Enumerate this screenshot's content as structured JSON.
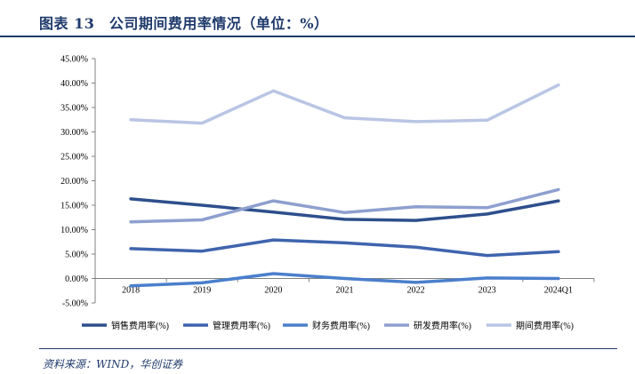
{
  "figure": {
    "title": "图表 13　公司期间费用率情况（单位：%）",
    "source": "资料来源：WIND，华创证券"
  },
  "chart_data": {
    "type": "line",
    "categories": [
      "2018",
      "2019",
      "2020",
      "2021",
      "2022",
      "2023",
      "2024Q1"
    ],
    "yticks": [
      "45.00%",
      "40.00%",
      "35.00%",
      "30.00%",
      "25.00%",
      "20.00%",
      "15.00%",
      "10.00%",
      "5.00%",
      "0.00%",
      "-5.00%"
    ],
    "ylim": [
      -5,
      45
    ],
    "legend_position": "bottom",
    "grid": false,
    "series": [
      {
        "name": "销售费用率(%)",
        "color": "#2e4f8c",
        "values": [
          16.3,
          15.0,
          13.6,
          12.1,
          11.9,
          13.2,
          15.9
        ]
      },
      {
        "name": "管理费用率(%)",
        "color": "#3f64ae",
        "values": [
          6.1,
          5.6,
          7.9,
          7.3,
          6.4,
          4.7,
          5.5
        ]
      },
      {
        "name": "财务费用率(%)",
        "color": "#4b7fcc",
        "values": [
          -1.5,
          -0.9,
          1.0,
          0.0,
          -0.8,
          0.1,
          0.0
        ]
      },
      {
        "name": "研发费用率(%)",
        "color": "#8e9fcf",
        "values": [
          11.6,
          12.0,
          15.9,
          13.5,
          14.7,
          14.5,
          18.2
        ]
      },
      {
        "name": "期间费用率(%)",
        "color": "#b9c5e4",
        "values": [
          32.5,
          31.8,
          38.4,
          32.9,
          32.1,
          32.4,
          39.6
        ]
      }
    ]
  }
}
